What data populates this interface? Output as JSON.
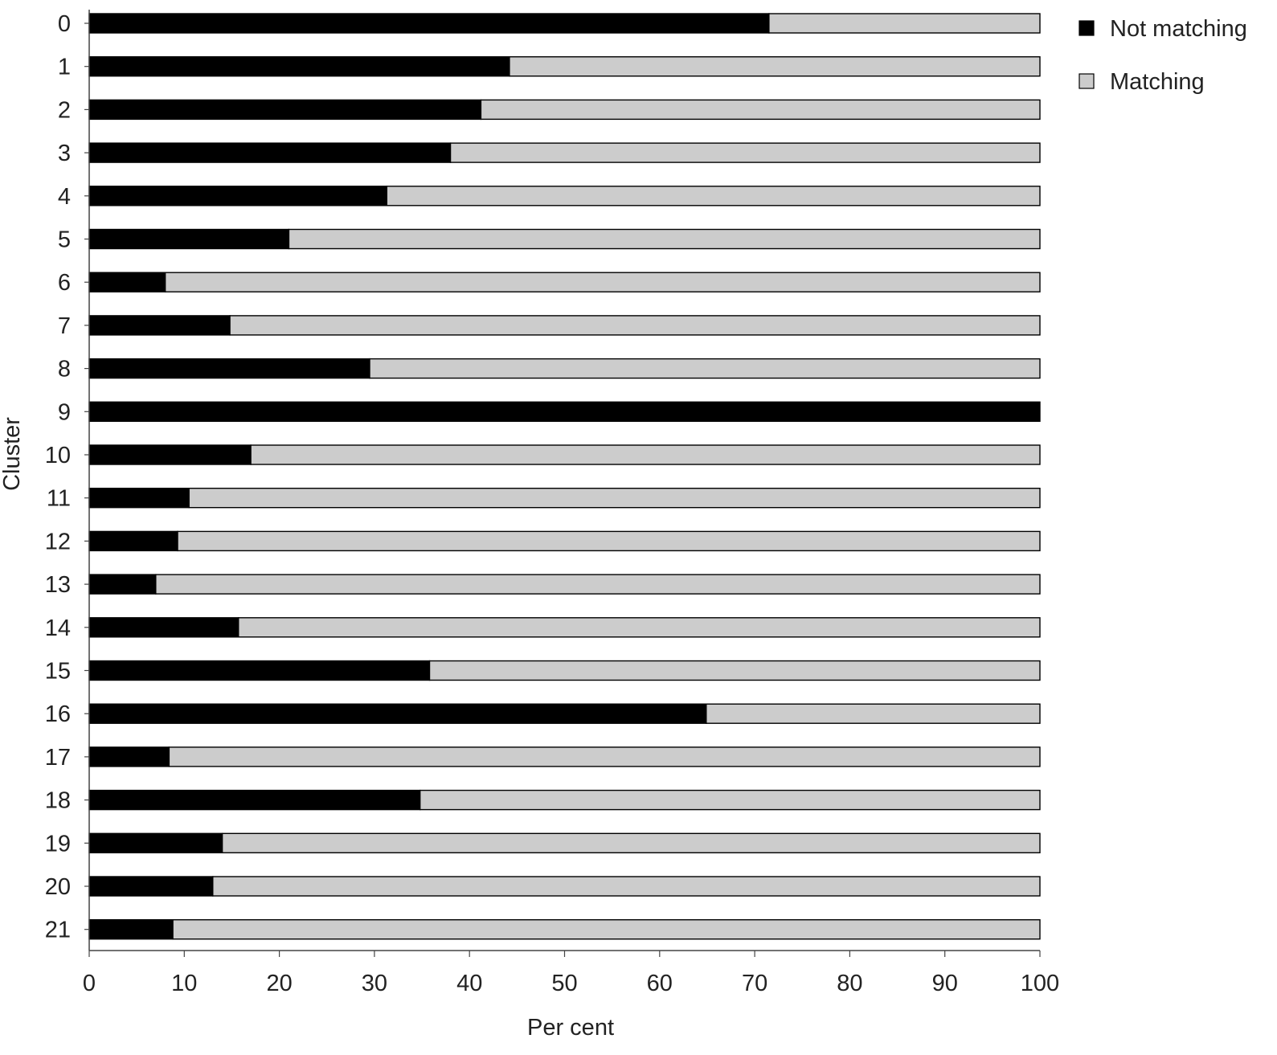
{
  "chart_data": {
    "type": "bar",
    "orientation": "horizontal",
    "stacked": true,
    "categories": [
      "0",
      "1",
      "2",
      "3",
      "4",
      "5",
      "6",
      "7",
      "8",
      "9",
      "10",
      "11",
      "12",
      "13",
      "14",
      "15",
      "16",
      "17",
      "18",
      "19",
      "20",
      "21"
    ],
    "series": [
      {
        "name": "Not matching",
        "color": "#000000",
        "values": [
          71.5,
          44.2,
          41.2,
          38.0,
          31.3,
          21.0,
          8.0,
          14.8,
          29.5,
          100.0,
          17.0,
          10.5,
          9.3,
          7.0,
          15.7,
          35.8,
          64.9,
          8.4,
          34.8,
          14.0,
          13.0,
          8.8
        ]
      },
      {
        "name": "Matching",
        "color": "#cccccc",
        "values": [
          28.5,
          55.8,
          58.8,
          62.0,
          68.7,
          79.0,
          92.0,
          85.2,
          70.5,
          0.0,
          83.0,
          89.5,
          90.7,
          93.0,
          84.3,
          64.2,
          35.1,
          91.6,
          65.2,
          86.0,
          87.0,
          91.2
        ]
      }
    ],
    "xlabel": "Per cent",
    "ylabel": "Cluster",
    "xlim": [
      0,
      100
    ],
    "xticks": [
      "0",
      "10",
      "20",
      "30",
      "40",
      "50",
      "60",
      "70",
      "80",
      "90",
      "100"
    ],
    "grid": false,
    "legend_position": "top-right"
  }
}
